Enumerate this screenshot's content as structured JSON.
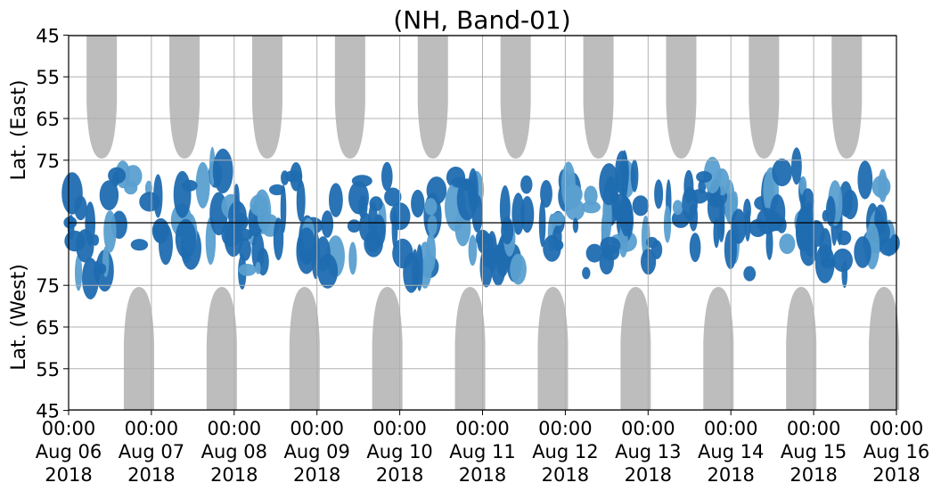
{
  "chart_data": {
    "type": "heatmap",
    "title": "(NH, Band-01)",
    "ylabel_top": "Lat. (East)",
    "ylabel_bottom": "Lat. (West)",
    "y_ticks_east": [
      "45",
      "55",
      "65",
      "75"
    ],
    "y_ticks_west": [
      "75",
      "65",
      "55",
      "45"
    ],
    "x_ticks": [
      {
        "time": "00:00",
        "date": "Aug 06",
        "year": "2018"
      },
      {
        "time": "00:00",
        "date": "Aug 07",
        "year": "2018"
      },
      {
        "time": "00:00",
        "date": "Aug 08",
        "year": "2018"
      },
      {
        "time": "00:00",
        "date": "Aug 09",
        "year": "2018"
      },
      {
        "time": "00:00",
        "date": "Aug 10",
        "year": "2018"
      },
      {
        "time": "00:00",
        "date": "Aug 11",
        "year": "2018"
      },
      {
        "time": "00:00",
        "date": "Aug 12",
        "year": "2018"
      },
      {
        "time": "00:00",
        "date": "Aug 13",
        "year": "2018"
      },
      {
        "time": "00:00",
        "date": "Aug 14",
        "year": "2018"
      },
      {
        "time": "00:00",
        "date": "Aug 15",
        "year": "2018"
      },
      {
        "time": "00:00",
        "date": "Aug 16",
        "year": "2018"
      }
    ],
    "grid": true,
    "colors": {
      "dark_blue": "#1f6bb0",
      "light_blue": "#5a9fd0",
      "gray": "#bdbdbd",
      "grid": "#b0b0b0"
    },
    "daylight_east_centers_day": [
      0.4,
      1.4,
      2.4,
      3.4,
      4.4,
      5.4,
      6.4,
      7.4,
      8.4,
      9.4
    ],
    "daylight_west_centers_day": [
      0.85,
      1.85,
      2.85,
      3.85,
      4.85,
      5.85,
      6.85,
      7.85,
      8.85,
      9.85
    ]
  }
}
